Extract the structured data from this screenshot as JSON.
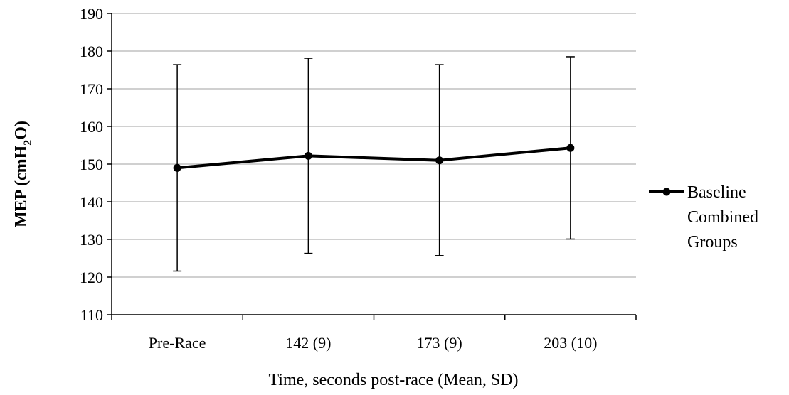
{
  "chart_data": {
    "type": "line",
    "title": "",
    "xlabel": "Time, seconds post-race (Mean, SD)",
    "ylabel": {
      "main": "MEP (cmH",
      "subscript": "2",
      "suffix": "O)"
    },
    "categories": [
      "Pre-Race",
      "142 (9)",
      "173 (9)",
      "203 (10)"
    ],
    "ylim": [
      110,
      190
    ],
    "yticks": [
      110,
      120,
      130,
      140,
      150,
      160,
      170,
      180,
      190
    ],
    "grid": true,
    "legend_position": "right",
    "series": [
      {
        "name_lines": [
          "Baseline",
          "Combined",
          "Groups"
        ],
        "values": [
          149.0,
          152.2,
          151.0,
          154.3
        ],
        "error_upper": [
          176.4,
          178.1,
          176.4,
          178.5
        ],
        "error_lower": [
          121.6,
          126.3,
          125.7,
          130.1
        ],
        "color": "#000000"
      }
    ],
    "colors": {
      "line": "#000000",
      "grid": "#c0c0c0",
      "axis": "#000000"
    }
  }
}
